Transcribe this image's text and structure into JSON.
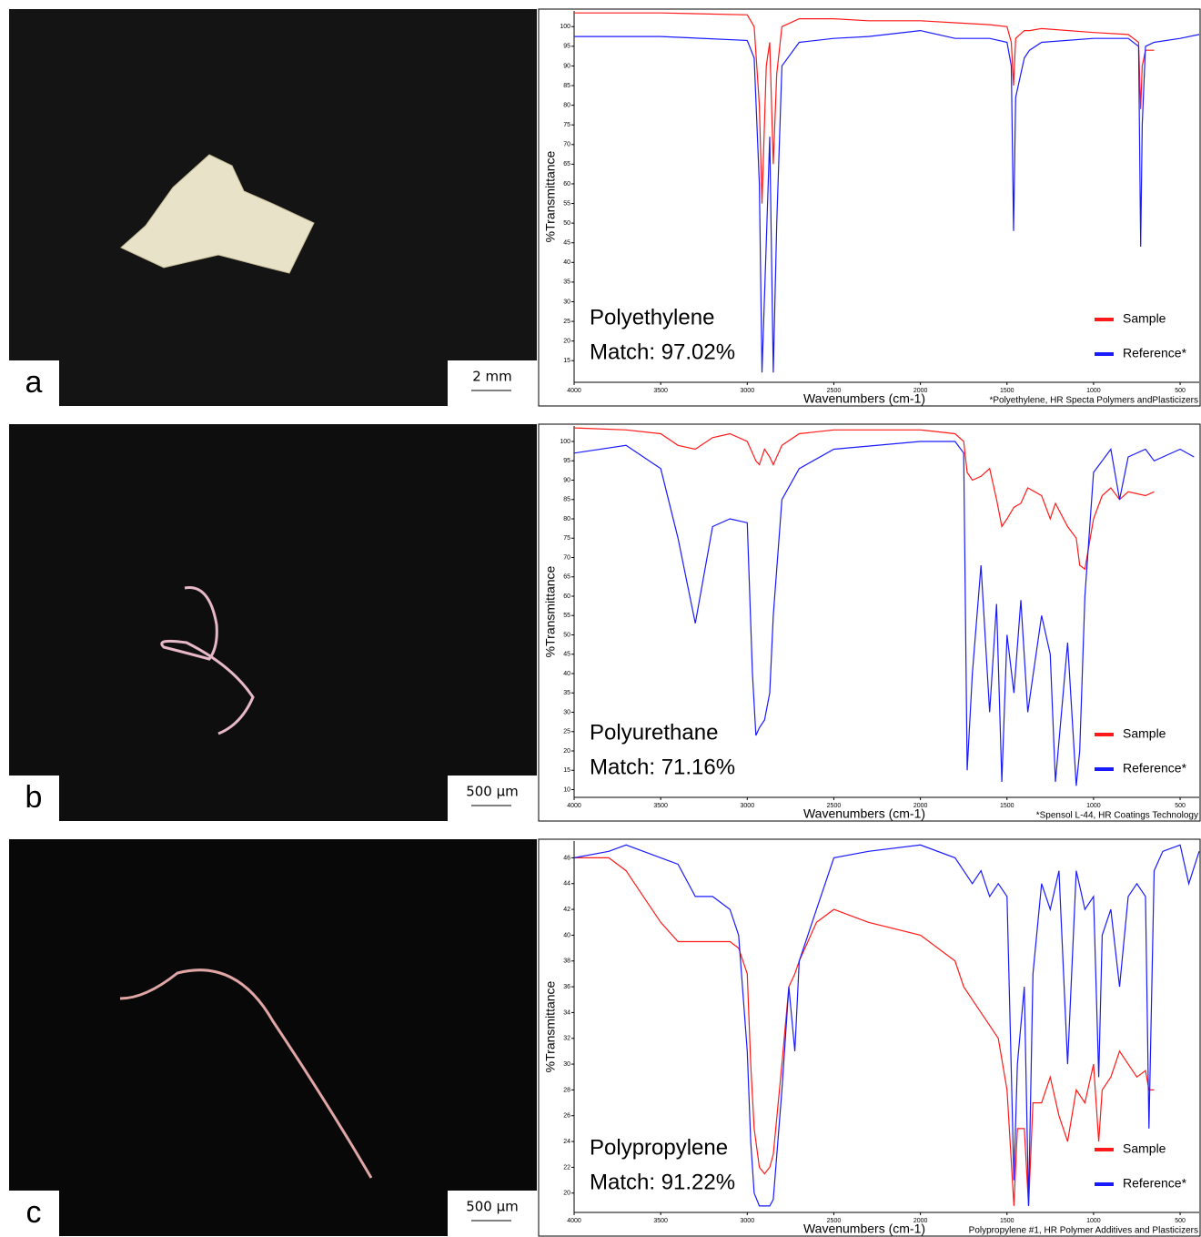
{
  "chart_data": [
    {
      "type": "line",
      "panel_label": "a",
      "scale_bar": "2 mm",
      "annotation": "Polyethylene",
      "match": "Match: 97.02%",
      "footnote": "*Polyethylene, HR Specta Polymers andPlasticizers",
      "xlabel": "Wavenumbers (cm-1)",
      "ylabel": "%Transmittance",
      "xlim": [
        4000,
        390
      ],
      "xticks": [
        4000,
        3500,
        3000,
        2500,
        2000,
        1500,
        1000,
        500
      ],
      "ylim": [
        9.5,
        104
      ],
      "yticks": [
        15,
        20,
        25,
        30,
        35,
        40,
        45,
        50,
        55,
        60,
        65,
        70,
        75,
        80,
        85,
        90,
        95,
        100
      ],
      "x": [
        4000,
        3500,
        3000,
        2960,
        2930,
        2915,
        2890,
        2870,
        2850,
        2830,
        2800,
        2700,
        2500,
        2300,
        2000,
        1800,
        1600,
        1500,
        1475,
        1462,
        1450,
        1400,
        1370,
        1300,
        1000,
        800,
        740,
        728,
        719,
        700,
        650,
        500,
        390
      ],
      "series": [
        {
          "name": "Sample",
          "color": "#ff1a1a",
          "values": [
            103.5,
            103.5,
            103,
            100,
            80,
            55,
            90,
            96,
            65,
            88,
            100,
            102,
            102,
            101.5,
            101.5,
            101,
            100.5,
            100,
            96,
            85,
            97,
            99,
            99,
            99.5,
            98.5,
            98,
            96,
            79,
            90,
            94,
            94,
            null,
            null
          ]
        },
        {
          "name": "Reference*",
          "color": "#1a1aff",
          "values": [
            97.5,
            97.5,
            96.5,
            92,
            60,
            12,
            45,
            72,
            12,
            50,
            90,
            96,
            97,
            97.5,
            99,
            97,
            97,
            96,
            90,
            48,
            82,
            92,
            94,
            96,
            97,
            97,
            95,
            44,
            75,
            95,
            96,
            97,
            98
          ]
        }
      ]
    },
    {
      "type": "line",
      "panel_label": "b",
      "scale_bar": "500 µm",
      "annotation": "Polyurethane",
      "match": "Match: 71.16%",
      "footnote": "*Spensol L-44, HR Coatings Technology",
      "xlabel": "Wavenumbers (cm-1)",
      "ylabel": "%Transmittance",
      "xlim": [
        4000,
        390
      ],
      "xticks": [
        4000,
        3500,
        3000,
        2500,
        2000,
        1500,
        1000,
        500
      ],
      "ylim": [
        8,
        104
      ],
      "yticks": [
        10,
        15,
        20,
        25,
        30,
        35,
        40,
        45,
        50,
        55,
        60,
        65,
        70,
        75,
        80,
        85,
        90,
        95,
        100
      ],
      "x": [
        4000,
        3700,
        3500,
        3400,
        3300,
        3200,
        3100,
        3000,
        2970,
        2950,
        2930,
        2900,
        2870,
        2850,
        2800,
        2700,
        2500,
        2000,
        1800,
        1750,
        1730,
        1700,
        1650,
        1600,
        1560,
        1530,
        1500,
        1460,
        1420,
        1380,
        1300,
        1250,
        1220,
        1150,
        1100,
        1080,
        1050,
        1000,
        950,
        900,
        850,
        800,
        700,
        650,
        500,
        420
      ],
      "series": [
        {
          "name": "Sample",
          "color": "#ff1a1a",
          "values": [
            103.5,
            103,
            102,
            99,
            98,
            101,
            102,
            100,
            97,
            95,
            94,
            98,
            96,
            94,
            99,
            102,
            103,
            103,
            102,
            100,
            92,
            90,
            91,
            93,
            85,
            78,
            80,
            83,
            84,
            88,
            86,
            80,
            84,
            78,
            75,
            68,
            67,
            80,
            86,
            88,
            85,
            87,
            86,
            87,
            null,
            null
          ]
        },
        {
          "name": "Reference*",
          "color": "#1a1aff",
          "values": [
            97,
            99,
            93,
            75,
            53,
            78,
            80,
            79,
            40,
            24,
            26,
            28,
            35,
            55,
            85,
            93,
            98,
            100,
            100,
            97,
            15,
            40,
            68,
            30,
            58,
            12,
            50,
            35,
            59,
            30,
            55,
            45,
            12,
            48,
            11,
            20,
            60,
            92,
            95,
            98,
            85,
            96,
            98,
            95,
            98,
            96
          ]
        }
      ]
    },
    {
      "type": "line",
      "panel_label": "c",
      "scale_bar": "500 µm",
      "annotation": "Polypropylene",
      "match": "Match: 91.22%",
      "footnote": "Polypropylene #1, HR Polymer Additives and Plasticizers",
      "xlabel": "Wavenumbers (cm-1)",
      "ylabel": "%Transmittance",
      "xlim": [
        4000,
        390
      ],
      "xticks": [
        4000,
        3500,
        3000,
        2500,
        2000,
        1500,
        1000,
        500
      ],
      "ylim": [
        18.5,
        47.3
      ],
      "yticks": [
        20,
        22,
        24,
        26,
        28,
        30,
        32,
        34,
        36,
        38,
        40,
        42,
        44,
        46
      ],
      "x": [
        4000,
        3800,
        3700,
        3600,
        3500,
        3400,
        3300,
        3200,
        3100,
        3050,
        3000,
        2980,
        2960,
        2930,
        2900,
        2870,
        2850,
        2800,
        2760,
        2725,
        2700,
        2600,
        2500,
        2300,
        2000,
        1800,
        1750,
        1700,
        1650,
        1600,
        1550,
        1500,
        1460,
        1440,
        1400,
        1375,
        1350,
        1300,
        1250,
        1200,
        1150,
        1100,
        1050,
        1000,
        970,
        950,
        900,
        850,
        800,
        750,
        700,
        680,
        650,
        600,
        500,
        450,
        390
      ],
      "series": [
        {
          "name": "Sample",
          "color": "#ff1a1a",
          "values": [
            46,
            46,
            45,
            43,
            41,
            39.5,
            39.5,
            39.5,
            39.5,
            39,
            37,
            30,
            25,
            22,
            21.5,
            22,
            23,
            30,
            36,
            37,
            38,
            41,
            42,
            41,
            40,
            38,
            36,
            35,
            34,
            33,
            32,
            28,
            19,
            25,
            25,
            19,
            27,
            27,
            29,
            26,
            24,
            28,
            27,
            30,
            24,
            28,
            29,
            31,
            30,
            29,
            29.5,
            28,
            28,
            null,
            null,
            null,
            null
          ]
        },
        {
          "name": "Reference*",
          "color": "#1a1aff",
          "values": [
            46,
            46.5,
            47,
            46.5,
            46,
            45.5,
            43,
            43,
            42,
            40,
            31,
            24,
            20,
            19,
            19,
            19,
            19.5,
            28,
            36,
            31,
            38,
            42,
            46,
            46.5,
            47,
            46,
            45,
            44,
            45,
            43,
            44,
            43,
            21,
            30,
            36,
            19,
            37,
            44,
            42,
            45,
            30,
            45,
            42,
            43,
            29,
            40,
            42,
            36,
            43,
            44,
            43,
            25,
            45,
            46.5,
            47,
            44,
            46.5
          ]
        }
      ]
    }
  ]
}
